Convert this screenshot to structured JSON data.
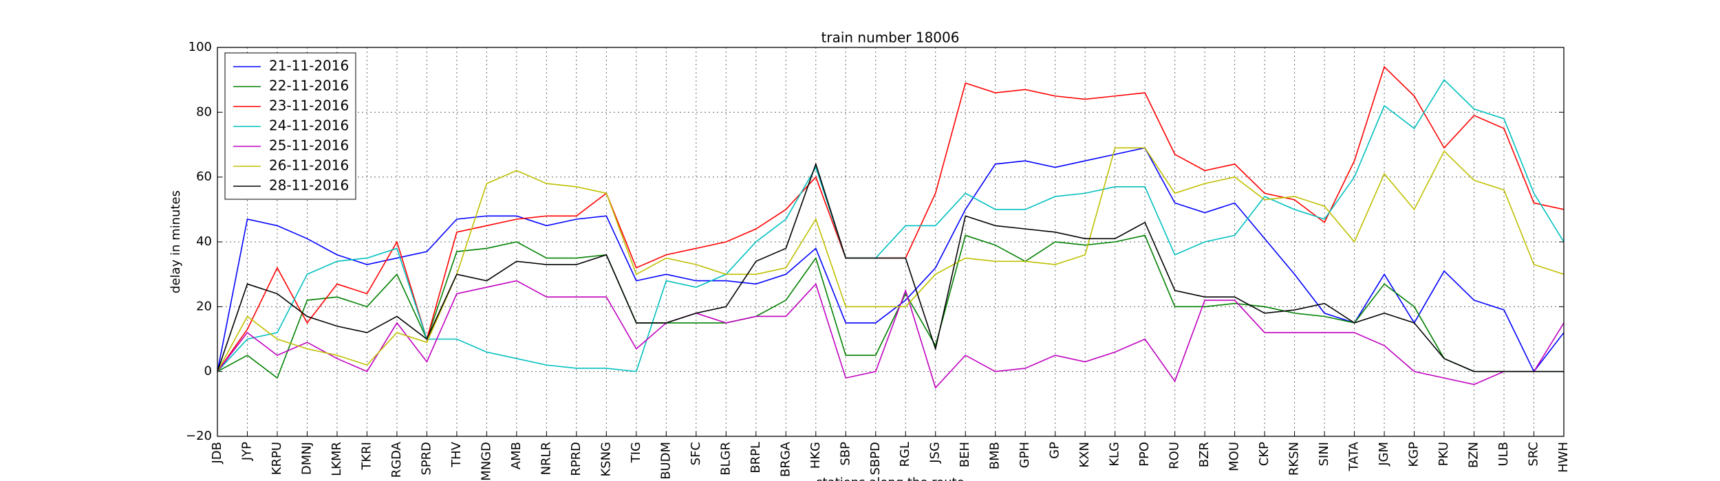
{
  "chart_data": {
    "type": "line",
    "title": "train number 18006",
    "xlabel": "stations along the route",
    "ylabel": "delay in minutes",
    "categories": [
      "JDB",
      "JYP",
      "KRPU",
      "DMNJ",
      "LKMR",
      "TKRI",
      "RGDA",
      "SPRD",
      "THV",
      "MNGD",
      "AMB",
      "NRLR",
      "RPRD",
      "KSNG",
      "TIG",
      "BUDM",
      "SFC",
      "BLGR",
      "BRPL",
      "BRGA",
      "HKG",
      "SBP",
      "SBPD",
      "RGL",
      "JSG",
      "BEH",
      "BMB",
      "GPH",
      "GP",
      "KXN",
      "KLG",
      "PPO",
      "ROU",
      "BZR",
      "MOU",
      "CKP",
      "RKSN",
      "SINI",
      "TATA",
      "JGM",
      "KGP",
      "PKU",
      "BZN",
      "ULB",
      "SRC",
      "HWH"
    ],
    "series": [
      {
        "name": "21-11-2016",
        "color": "#0000ff",
        "values": [
          0,
          47,
          45,
          41,
          36,
          33,
          35,
          37,
          47,
          48,
          48,
          45,
          47,
          48,
          28,
          30,
          28,
          28,
          27,
          30,
          38,
          15,
          15,
          22,
          32,
          50,
          64,
          65,
          63,
          65,
          67,
          69,
          52,
          49,
          52,
          41,
          30,
          18,
          15,
          30,
          15,
          31,
          22,
          19,
          0,
          12
        ]
      },
      {
        "name": "22-11-2016",
        "color": "#008000",
        "values": [
          0,
          5,
          -2,
          22,
          23,
          20,
          30,
          10,
          37,
          38,
          40,
          35,
          35,
          36,
          15,
          15,
          15,
          15,
          17,
          22,
          35,
          5,
          5,
          24,
          8,
          42,
          39,
          34,
          40,
          39,
          40,
          42,
          20,
          20,
          21,
          20,
          18,
          17,
          15,
          27,
          20,
          4,
          0,
          0,
          0,
          0
        ]
      },
      {
        "name": "23-11-2016",
        "color": "#ff0000",
        "values": [
          0,
          13,
          32,
          15,
          27,
          24,
          40,
          10,
          43,
          45,
          47,
          48,
          48,
          55,
          32,
          36,
          38,
          40,
          44,
          50,
          60,
          35,
          35,
          35,
          55,
          89,
          86,
          87,
          85,
          84,
          85,
          86,
          67,
          62,
          64,
          55,
          53,
          46,
          65,
          94,
          85,
          69,
          79,
          75,
          52,
          50
        ]
      },
      {
        "name": "24-11-2016",
        "color": "#00bfbf",
        "values": [
          0,
          10,
          12,
          30,
          34,
          35,
          38,
          10,
          10,
          6,
          4,
          2,
          1,
          1,
          0,
          28,
          26,
          30,
          40,
          47,
          63,
          35,
          35,
          45,
          45,
          55,
          50,
          50,
          54,
          55,
          57,
          57,
          36,
          40,
          42,
          54,
          50,
          47,
          60,
          82,
          75,
          90,
          81,
          78,
          55,
          40
        ]
      },
      {
        "name": "25-11-2016",
        "color": "#bf00bf",
        "values": [
          0,
          12,
          5,
          9,
          4,
          0,
          15,
          3,
          24,
          26,
          28,
          23,
          23,
          23,
          7,
          15,
          18,
          15,
          17,
          17,
          27,
          -2,
          0,
          25,
          -5,
          5,
          0,
          1,
          5,
          3,
          6,
          10,
          -3,
          22,
          22,
          12,
          12,
          12,
          12,
          8,
          0,
          -2,
          -4,
          0,
          0,
          15
        ]
      },
      {
        "name": "26-11-2016",
        "color": "#bfbf00",
        "values": [
          0,
          17,
          10,
          7,
          5,
          2,
          12,
          9,
          30,
          58,
          62,
          58,
          57,
          55,
          30,
          35,
          33,
          30,
          30,
          32,
          47,
          20,
          20,
          20,
          30,
          35,
          34,
          34,
          33,
          36,
          69,
          69,
          55,
          58,
          60,
          53,
          54,
          51,
          40,
          61,
          50,
          68,
          59,
          56,
          33,
          30
        ]
      },
      {
        "name": "28-11-2016",
        "color": "#000000",
        "values": [
          0,
          27,
          24,
          17,
          14,
          12,
          17,
          10,
          30,
          28,
          34,
          33,
          33,
          36,
          15,
          15,
          18,
          20,
          34,
          38,
          64,
          35,
          35,
          35,
          7,
          48,
          45,
          44,
          43,
          41,
          41,
          46,
          25,
          23,
          23,
          18,
          19,
          21,
          15,
          18,
          15,
          4,
          0,
          0,
          0,
          0
        ]
      }
    ],
    "ylim": [
      -20,
      100
    ],
    "yticks": [
      {
        "value": -20,
        "label": "−20"
      },
      0,
      20,
      40,
      60,
      80,
      100
    ],
    "grid": true,
    "legend": "upper left"
  }
}
